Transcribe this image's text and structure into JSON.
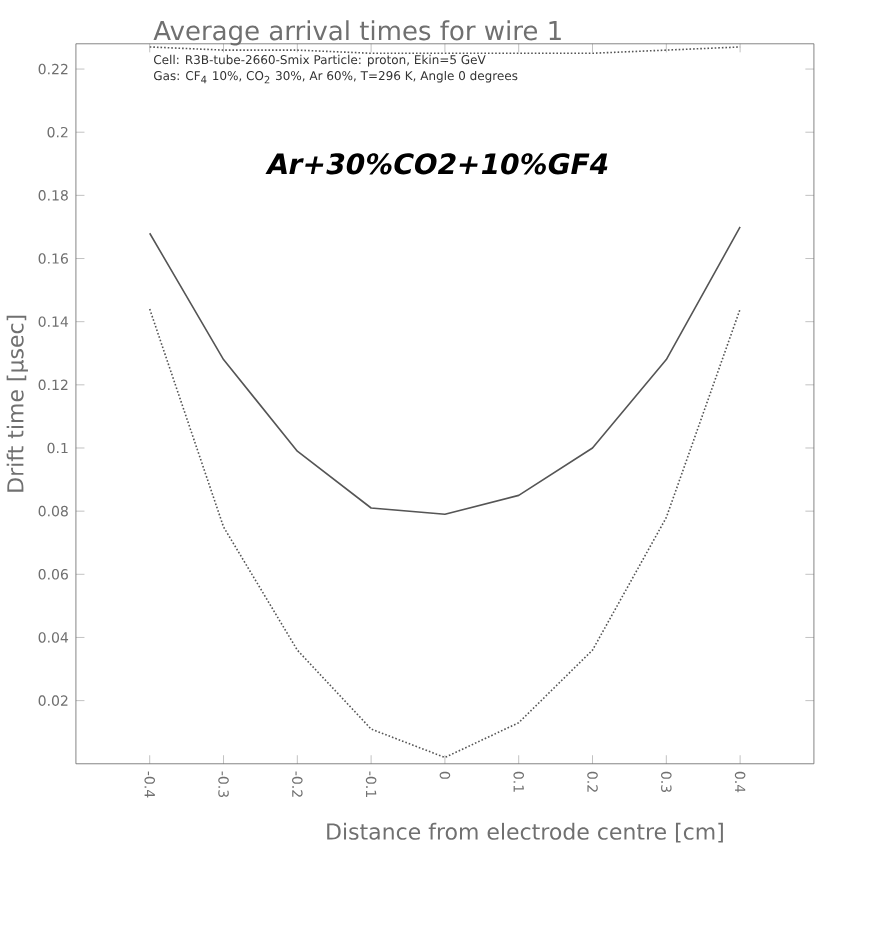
{
  "chart_data": {
    "type": "line",
    "title": "Average arrival times for wire 1",
    "subtitle": "Cell: R3B-tube-2660-Smix          Particle: proton, Ekin=5 GeV",
    "annotations": [
      "Gas: CF$_{4}$ 10%, CO$_{2}$ 30%, Ar 60%, T=296 K, Angle 0 degrees",
      "Ar+30%CO2+10%GF4"
    ],
    "xlabel": "Distance from electrode centre [cm]",
    "ylabel": "Drift time [μsec]",
    "x": [
      -0.4,
      -0.3,
      -0.2,
      -0.1,
      0,
      0.1,
      0.2,
      0.3,
      0.4
    ],
    "series": [
      {
        "color": "#555555",
        "line_style": "solid",
        "values": [
          0.168,
          0.128,
          0.099,
          0.081,
          0.079,
          0.085,
          0.1,
          0.128,
          0.17
        ]
      },
      {
        "color": "#555555",
        "line_style": "dotted",
        "values": [
          0.144,
          0.075,
          0.036,
          0.011,
          0.002,
          0.013,
          0.036,
          0.078,
          0.144
        ]
      },
      {
        "color": "#555555",
        "line_style": "dotted",
        "values": [
          0.227,
          0.226,
          0.226,
          0.225,
          0.225,
          0.225,
          0.225,
          0.226,
          0.227
        ]
      }
    ],
    "xlim": [
      -0.5,
      0.5
    ],
    "ylim": [
      0,
      0.228
    ],
    "xticks": [
      -0.4,
      -0.3,
      -0.2,
      -0.1,
      0,
      0.1,
      0.2,
      0.3,
      0.4
    ],
    "yticks": [
      0.02,
      0.04,
      0.06,
      0.08,
      0.1,
      0.12,
      0.14,
      0.16,
      0.18,
      0.2,
      0.22
    ]
  }
}
